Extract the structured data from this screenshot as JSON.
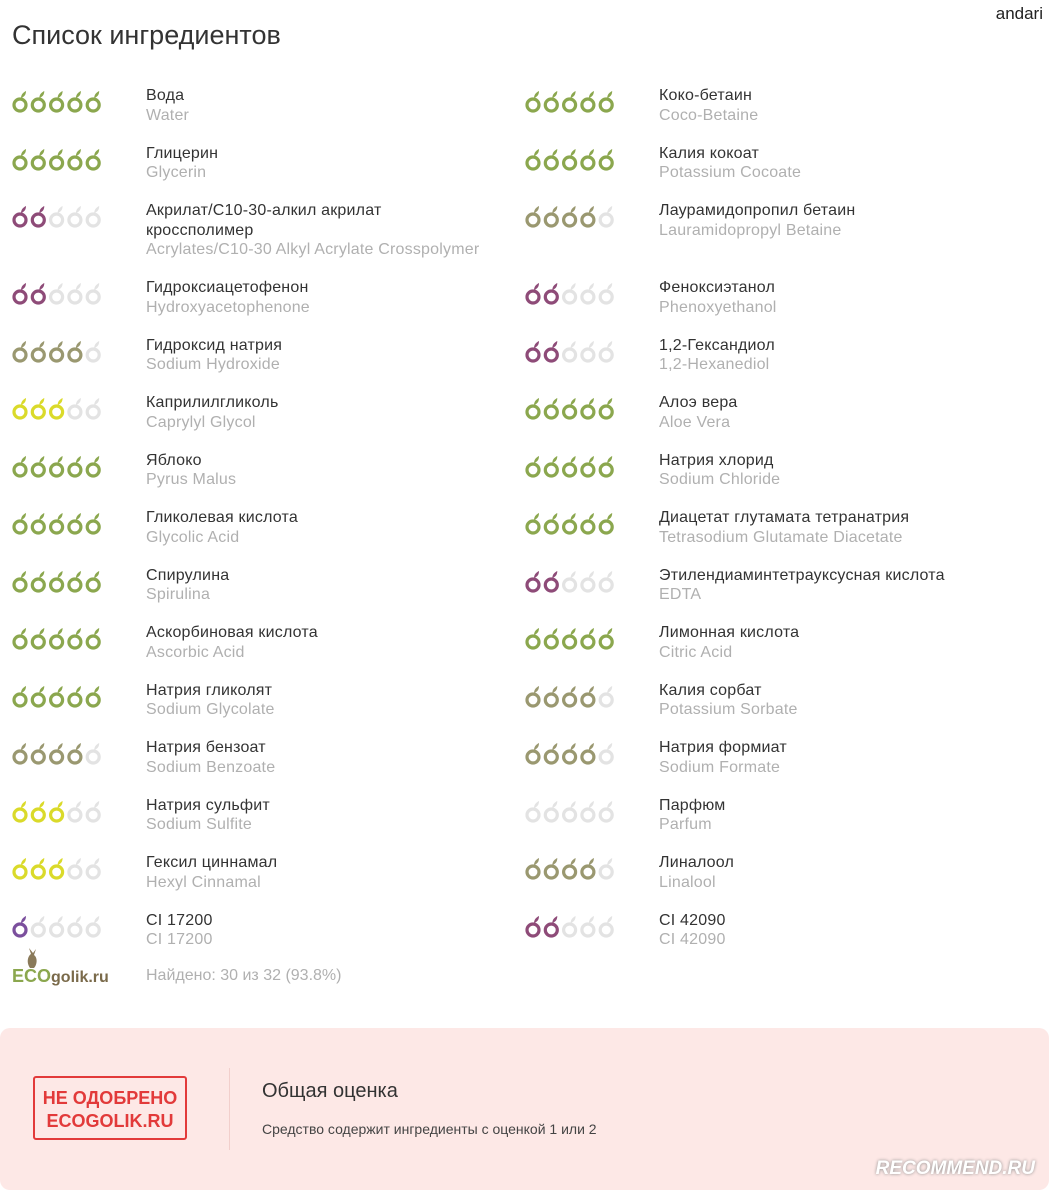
{
  "user": "andari",
  "title": "Список ингредиентов",
  "rating_colors": {
    "0": "#e3e3e3",
    "1": "#7b4f9d",
    "2": "#8e4b78",
    "3": "#dada2a",
    "4": "#9a9870",
    "5": "#8ba74e"
  },
  "ingredients": [
    {
      "name": "Вода",
      "inci": "Water",
      "rating": 5
    },
    {
      "name": "Глицерин",
      "inci": "Glycerin",
      "rating": 5
    },
    {
      "name": "Акрилат/С10-30-алкил акрилат кроссполимер",
      "inci": "Acrylates/C10-30 Alkyl Acrylate Crosspolymer",
      "rating": 2
    },
    {
      "name": "Гидроксиацетофенон",
      "inci": "Hydroxyacetophenone",
      "rating": 2
    },
    {
      "name": "Гидроксид натрия",
      "inci": "Sodium Hydroxide",
      "rating": 4
    },
    {
      "name": "Каприлилгликоль",
      "inci": "Caprylyl Glycol",
      "rating": 3
    },
    {
      "name": "Яблоко",
      "inci": "Pyrus Malus",
      "rating": 5
    },
    {
      "name": "Гликолевая кислота",
      "inci": "Glycolic Acid",
      "rating": 5
    },
    {
      "name": "Спирулина",
      "inci": "Spirulina",
      "rating": 5
    },
    {
      "name": "Аскорбиновая кислота",
      "inci": "Ascorbic Acid",
      "rating": 5
    },
    {
      "name": "Натрия гликолят",
      "inci": "Sodium Glycolate",
      "rating": 5
    },
    {
      "name": "Натрия бензоат",
      "inci": "Sodium Benzoate",
      "rating": 4
    },
    {
      "name": "Натрия сульфит",
      "inci": "Sodium Sulfite",
      "rating": 3
    },
    {
      "name": "Гексил циннамал",
      "inci": "Hexyl Cinnamal",
      "rating": 3
    },
    {
      "name": "CI 17200",
      "inci": "CI 17200",
      "rating": 1
    },
    {
      "name": "Коко-бетаин",
      "inci": "Coco-Betaine",
      "rating": 5
    },
    {
      "name": "Калия кокоат",
      "inci": "Potassium Cocoate",
      "rating": 5
    },
    {
      "name": "Лаурамидопропил бетаин",
      "inci": "Lauramidopropyl Betaine",
      "rating": 4
    },
    {
      "name": "Феноксиэтанол",
      "inci": "Phenoxyethanol",
      "rating": 2
    },
    {
      "name": "1,2-Гександиол",
      "inci": "1,2-Hexanediol",
      "rating": 2
    },
    {
      "name": "Алоэ вера",
      "inci": "Aloe Vera",
      "rating": 5
    },
    {
      "name": "Натрия хлорид",
      "inci": "Sodium Chloride",
      "rating": 5
    },
    {
      "name": "Диацетат глутамата тетранатрия",
      "inci": "Tetrasodium Glutamate Diacetate",
      "rating": 5
    },
    {
      "name": "Этилендиаминтетрауксусная кислота",
      "inci": "EDTA",
      "rating": 2
    },
    {
      "name": "Лимонная кислота",
      "inci": "Citric Acid",
      "rating": 5
    },
    {
      "name": "Калия сорбат",
      "inci": "Potassium Sorbate",
      "rating": 4
    },
    {
      "name": "Натрия формиат",
      "inci": "Sodium Formate",
      "rating": 4
    },
    {
      "name": "Парфюм",
      "inci": "Parfum",
      "rating": 0
    },
    {
      "name": "Линалоол",
      "inci": "Linalool",
      "rating": 4
    },
    {
      "name": "CI 42090",
      "inci": "CI 42090",
      "rating": 2
    }
  ],
  "logo": {
    "eco": "ECO",
    "rest": "golik.ru"
  },
  "found": "Найдено: 30 из 32 (93.8%)",
  "verdict": {
    "stamp_line1": "НЕ ОДОБРЕНО",
    "stamp_line2": "ECOGOLIK.RU",
    "heading": "Общая оценка",
    "text": "Средство содержит ингредиенты с оценкой 1 или 2"
  },
  "watermark": "RECOMMEND.RU"
}
